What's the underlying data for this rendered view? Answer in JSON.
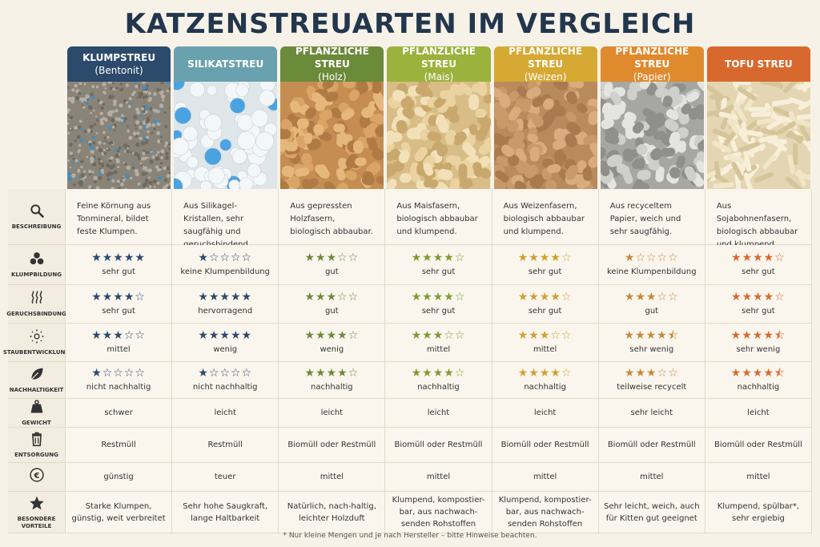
{
  "title": "KATZENSTREUARTEN IM VERGLEICH",
  "columns": [
    {
      "name": "KLUMPSTREU",
      "sub": "(Bentonit)",
      "color": "#2c4a6b",
      "texture": "bentonite"
    },
    {
      "name": "SILIKATSTREU",
      "sub": "",
      "color": "#6aa1ae",
      "texture": "silica"
    },
    {
      "name": "PFLANZLICHE STREU",
      "sub": "(Holz)",
      "color": "#6b8a3a",
      "texture": "wood"
    },
    {
      "name": "PFLANZLICHE STREU",
      "sub": "(Mais)",
      "color": "#9bb23d",
      "texture": "corn"
    },
    {
      "name": "PFLANZLICHE STREU",
      "sub": "(Weizen)",
      "color": "#d6a934",
      "texture": "wheat"
    },
    {
      "name": "PFLANZLICHE STREU",
      "sub": "(Papier)",
      "color": "#e08a2e",
      "texture": "paper"
    },
    {
      "name": "TOFU STREU",
      "sub": "",
      "color": "#d8692e",
      "texture": "tofu"
    }
  ],
  "rows": {
    "beschreibung": {
      "label": "BESCHREIBUNG",
      "icon": "magnifier-icon",
      "values": [
        "Feine Körnung aus Tonmineral, bildet feste Klumpen.",
        "Aus Silikagel-Kristallen, sehr saugfähig und geruchsbindend.",
        "Aus gepressten Holzfasern, biologisch abbaubar.",
        "Aus Maisfasern, biologisch abbaubar und klumpend.",
        "Aus Weizenfasern, biologisch abbaubar und klumpend.",
        "Aus recyceltem Papier, weich und sehr saugfähig.",
        "Aus Sojabohnenfasern, biologisch abbaubar und klumpend."
      ]
    },
    "klumpbildung": {
      "label": "KLUMPBILDUNG",
      "icon": "clumps-icon",
      "ratings": [
        5,
        1,
        3,
        4,
        4,
        1,
        4
      ],
      "values": [
        "sehr gut",
        "keine Klumpenbildung",
        "gut",
        "sehr gut",
        "sehr gut",
        "keine Klumpenbildung",
        "sehr gut"
      ]
    },
    "geruchsbindung": {
      "label": "GERUCHSBINDUNG",
      "icon": "odor-waves-icon",
      "ratings": [
        4,
        5,
        3,
        4,
        4,
        3,
        4
      ],
      "values": [
        "sehr gut",
        "hervorragend",
        "gut",
        "sehr gut",
        "sehr gut",
        "gut",
        "sehr gut"
      ]
    },
    "staubentwicklung": {
      "label": "STAUBENTWICKLUNG",
      "icon": "dust-icon",
      "ratings": [
        3,
        5,
        4,
        3,
        3,
        4.5,
        4.5
      ],
      "values": [
        "mittel",
        "wenig",
        "wenig",
        "mittel",
        "mittel",
        "sehr wenig",
        "sehr wenig"
      ]
    },
    "nachhaltigkeit": {
      "label": "NACHHALTIGKEIT",
      "icon": "leaf-icon",
      "ratings": [
        1,
        1,
        4,
        4,
        4,
        3,
        4.5
      ],
      "values": [
        "nicht nachhaltig",
        "nicht nachhaltig",
        "nachhaltig",
        "nachhaltig",
        "nachhaltig",
        "teilweise recycelt",
        "nachhaltig"
      ]
    },
    "gewicht": {
      "label": "GEWICHT",
      "icon": "weight-icon",
      "values": [
        "schwer",
        "leicht",
        "leicht",
        "leicht",
        "leicht",
        "sehr leicht",
        "leicht"
      ]
    },
    "entsorgung": {
      "label": "ENTSORGUNG",
      "icon": "trash-icon",
      "values": [
        "Restmüll",
        "Restmüll",
        "Biomüll oder Restmüll",
        "Biomüll oder Restmüll",
        "Biomüll oder Restmüll",
        "Biomüll oder Restmüll",
        "Biomüll oder Restmüll"
      ]
    },
    "preis": {
      "label": "",
      "icon": "euro-icon",
      "values": [
        "günstig",
        "teuer",
        "mittel",
        "mittel",
        "mittel",
        "mittel",
        "mittel"
      ]
    },
    "vorteile": {
      "label": "BESONDERE VORTEILE",
      "icon": "star-icon",
      "values": [
        "Starke Klumpen, günstig, weit verbreitet",
        "Sehr hohe Saugkraft, lange Haltbarkeit",
        "Natürlich, nach-haltig, leichter Holzduft",
        "Klumpend, kompostier-bar, aus nachwach-senden Rohstoffen",
        "Klumpend, kompostier-bar, aus nachwach-senden Rohstoffen",
        "Sehr leicht, weich, auch für Kitten gut geeignet",
        "Klumpend, spülbar*, sehr ergiebig"
      ]
    }
  },
  "footnote": "* Nur kleine Mengen und je nach Hersteller – bitte Hinweise beachten."
}
